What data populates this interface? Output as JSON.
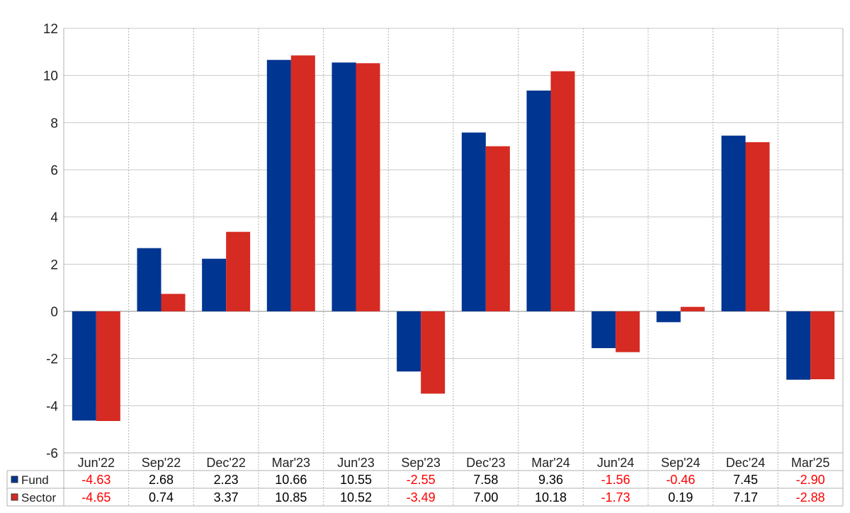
{
  "chart_data": {
    "type": "bar",
    "title": "",
    "xlabel": "",
    "ylabel": "",
    "categories": [
      "Jun'22",
      "Sep'22",
      "Dec'22",
      "Mar'23",
      "Jun'23",
      "Sep'23",
      "Dec'23",
      "Mar'24",
      "Jun'24",
      "Sep'24",
      "Dec'24",
      "Mar'25"
    ],
    "series": [
      {
        "name": "Fund",
        "color": "#003591",
        "values": [
          -4.63,
          2.68,
          2.23,
          10.66,
          10.55,
          -2.55,
          7.58,
          9.36,
          -1.56,
          -0.46,
          7.45,
          -2.9
        ],
        "labels": [
          "-4.63",
          "2.68",
          "2.23",
          "10.66",
          "10.55",
          "-2.55",
          "7.58",
          "9.36",
          "-1.56",
          "-0.46",
          "7.45",
          "-2.90"
        ]
      },
      {
        "name": "Sector",
        "color": "#d52b22",
        "values": [
          -4.65,
          0.74,
          3.37,
          10.85,
          10.52,
          -3.49,
          7.0,
          10.18,
          -1.73,
          0.19,
          7.17,
          -2.88
        ],
        "labels": [
          "-4.65",
          "0.74",
          "3.37",
          "10.85",
          "10.52",
          "-3.49",
          "7.00",
          "10.18",
          "-1.73",
          "0.19",
          "7.17",
          "-2.88"
        ]
      }
    ],
    "ylim": [
      -6,
      12
    ],
    "yticks": [
      "-6",
      "-4",
      "-2",
      "0",
      "2",
      "4",
      "6",
      "8",
      "10",
      "12"
    ],
    "grid": true,
    "legend": "table-below",
    "negative_label_color": "#ff0000",
    "positive_label_color": "#000000"
  }
}
